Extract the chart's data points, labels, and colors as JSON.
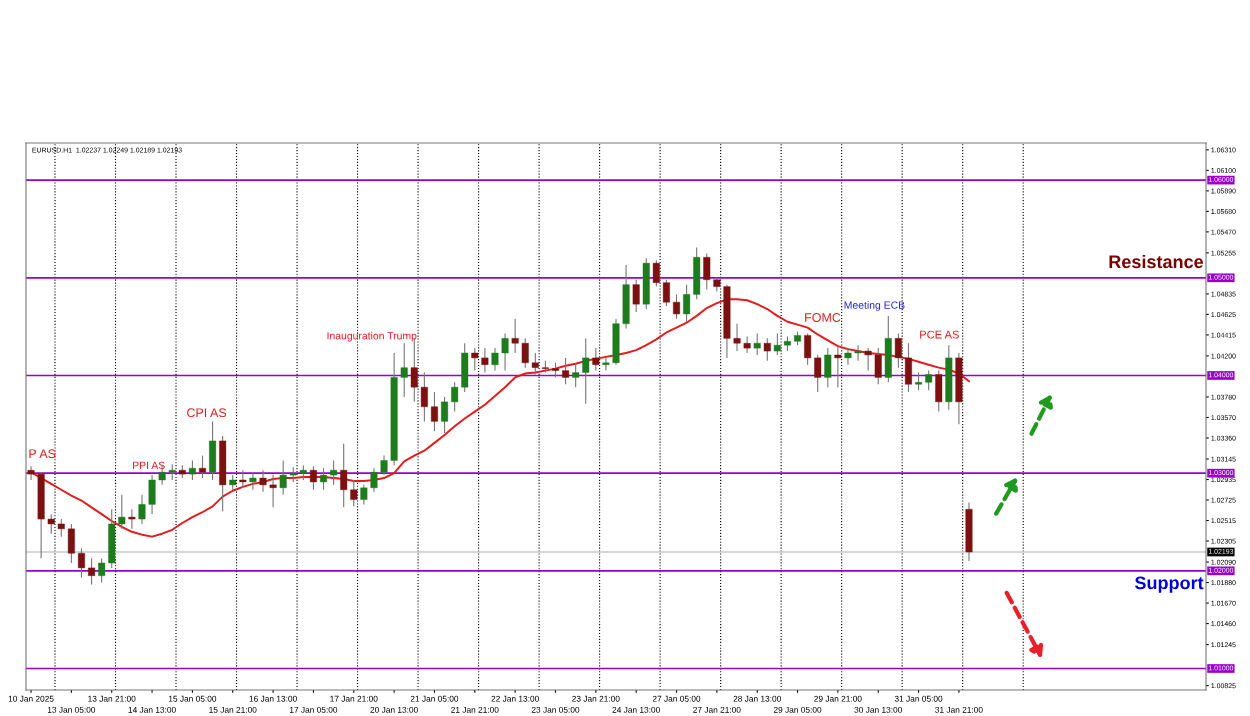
{
  "chart_data": {
    "type": "candlestick",
    "title": "EURUSD.H1  1.02237 1.02249 1.02189 1.02193",
    "categories": [
      "10 Jan 2025",
      null,
      null,
      null,
      "13 Jan 05:00",
      null,
      null,
      null,
      "13 Jan 21:00",
      null,
      null,
      null,
      "14 Jan 13:00",
      null,
      null,
      null,
      "15 Jan 05:00",
      null,
      null,
      null,
      "15 Jan 21:00",
      null,
      null,
      null,
      "16 Jan 13:00",
      null,
      null,
      null,
      "17 Jan 05:00",
      null,
      null,
      null,
      "17 Jan 21:00",
      null,
      null,
      null,
      "20 Jan 13:00",
      null,
      null,
      null,
      "21 Jan 05:00",
      null,
      null,
      null,
      "21 Jan 21:00",
      null,
      null,
      null,
      "22 Jan 13:00",
      null,
      null,
      null,
      "23 Jan 05:00",
      null,
      null,
      null,
      "23 Jan 21:00",
      null,
      null,
      null,
      "24 Jan 13:00",
      null,
      null,
      null,
      "27 Jan 05:00",
      null,
      null,
      null,
      "27 Jan 21:00",
      null,
      null,
      null,
      "28 Jan 13:00",
      null,
      null,
      null,
      "29 Jan 05:00",
      null,
      null,
      null,
      "29 Jan 21:00",
      null,
      null,
      null,
      "30 Jan 13:00",
      null,
      null,
      null,
      "31 Jan 05:00",
      null,
      null,
      null,
      "31 Jan 21:00",
      null,
      null,
      null,
      null,
      null,
      null,
      null,
      null,
      null,
      null,
      null,
      null,
      null,
      null,
      null,
      null,
      null,
      null,
      null,
      null,
      null,
      null,
      null,
      null
    ],
    "ohlc": [
      [
        1.0303,
        1.0307,
        1.0293,
        1.0299
      ],
      [
        1.0299,
        1.0301,
        1.0213,
        1.0253
      ],
      [
        1.0253,
        1.0258,
        1.0238,
        1.0248
      ],
      [
        1.0248,
        1.0253,
        1.0235,
        1.0243
      ],
      [
        1.0243,
        1.0248,
        1.0208,
        1.0218
      ],
      [
        1.0218,
        1.0223,
        1.0193,
        1.0203
      ],
      [
        1.0203,
        1.0213,
        1.0186,
        1.0195
      ],
      [
        1.0195,
        1.0213,
        1.0188,
        1.0208
      ],
      [
        1.0208,
        1.0263,
        1.0203,
        1.0248
      ],
      [
        1.0248,
        1.0278,
        1.0243,
        1.0255
      ],
      [
        1.0255,
        1.0263,
        1.0243,
        1.0253
      ],
      [
        1.0253,
        1.0278,
        1.0248,
        1.0268
      ],
      [
        1.0268,
        1.0298,
        1.0258,
        1.0293
      ],
      [
        1.0293,
        1.0308,
        1.0288,
        1.0301
      ],
      [
        1.0301,
        1.0309,
        1.0293,
        1.0303
      ],
      [
        1.0303,
        1.0308,
        1.0295,
        1.0299
      ],
      [
        1.0299,
        1.0313,
        1.0293,
        1.0305
      ],
      [
        1.0305,
        1.0318,
        1.0295,
        1.0301
      ],
      [
        1.0301,
        1.0353,
        1.0293,
        1.0333
      ],
      [
        1.0333,
        1.0338,
        1.0261,
        1.0288
      ],
      [
        1.0288,
        1.0298,
        1.0283,
        1.0293
      ],
      [
        1.0293,
        1.0303,
        1.0285,
        1.0291
      ],
      [
        1.0291,
        1.03,
        1.0283,
        1.0295
      ],
      [
        1.0295,
        1.0303,
        1.0281,
        1.0288
      ],
      [
        1.0288,
        1.0298,
        1.0265,
        1.0285
      ],
      [
        1.0285,
        1.0313,
        1.0278,
        1.0298
      ],
      [
        1.0298,
        1.0306,
        1.0291,
        1.03
      ],
      [
        1.03,
        1.0308,
        1.0293,
        1.0303
      ],
      [
        1.0303,
        1.0307,
        1.0283,
        1.0291
      ],
      [
        1.0291,
        1.0305,
        1.0283,
        1.0298
      ],
      [
        1.0298,
        1.0313,
        1.0288,
        1.0303
      ],
      [
        1.0303,
        1.033,
        1.0265,
        1.0283
      ],
      [
        1.0283,
        1.0293,
        1.0266,
        1.0273
      ],
      [
        1.0273,
        1.0288,
        1.0268,
        1.0285
      ],
      [
        1.0285,
        1.0305,
        1.0281,
        1.0301
      ],
      [
        1.0301,
        1.0318,
        1.0298,
        1.0313
      ],
      [
        1.0313,
        1.0423,
        1.0308,
        1.0398
      ],
      [
        1.0398,
        1.0433,
        1.0378,
        1.0408
      ],
      [
        1.0408,
        1.0438,
        1.0373,
        1.0388
      ],
      [
        1.0388,
        1.0403,
        1.0353,
        1.0368
      ],
      [
        1.0368,
        1.0383,
        1.0343,
        1.0353
      ],
      [
        1.0353,
        1.0378,
        1.0341,
        1.0373
      ],
      [
        1.0373,
        1.0393,
        1.0363,
        1.0388
      ],
      [
        1.0388,
        1.0433,
        1.0383,
        1.0423
      ],
      [
        1.0423,
        1.0428,
        1.0405,
        1.0418
      ],
      [
        1.0418,
        1.0428,
        1.0403,
        1.0411
      ],
      [
        1.0411,
        1.0428,
        1.0405,
        1.0423
      ],
      [
        1.0423,
        1.0443,
        1.0405,
        1.0438
      ],
      [
        1.0438,
        1.0458,
        1.0423,
        1.0433
      ],
      [
        1.0433,
        1.0438,
        1.0408,
        1.0413
      ],
      [
        1.0413,
        1.0423,
        1.0401,
        1.0408
      ],
      [
        1.0408,
        1.0415,
        1.0403,
        1.0407
      ],
      [
        1.0407,
        1.0413,
        1.0398,
        1.0405
      ],
      [
        1.0405,
        1.0418,
        1.0391,
        1.0398
      ],
      [
        1.0398,
        1.0413,
        1.0388,
        1.0403
      ],
      [
        1.0403,
        1.0438,
        1.0371,
        1.0418
      ],
      [
        1.0418,
        1.0428,
        1.0405,
        1.0411
      ],
      [
        1.0411,
        1.0418,
        1.0405,
        1.0413
      ],
      [
        1.0413,
        1.0458,
        1.0411,
        1.0453
      ],
      [
        1.0453,
        1.0513,
        1.0448,
        1.0493
      ],
      [
        1.0493,
        1.0498,
        1.0465,
        1.0473
      ],
      [
        1.0473,
        1.052,
        1.0468,
        1.0515
      ],
      [
        1.0515,
        1.0518,
        1.0491,
        1.0495
      ],
      [
        1.0495,
        1.0498,
        1.0471,
        1.0475
      ],
      [
        1.0475,
        1.0483,
        1.0458,
        1.0463
      ],
      [
        1.0463,
        1.0493,
        1.0455,
        1.0483
      ],
      [
        1.0483,
        1.0531,
        1.0478,
        1.0521
      ],
      [
        1.0521,
        1.0525,
        1.0488,
        1.0498
      ],
      [
        1.0498,
        1.0501,
        1.0486,
        1.0491
      ],
      [
        1.0491,
        1.0493,
        1.0418,
        1.0438
      ],
      [
        1.0438,
        1.0453,
        1.0425,
        1.0433
      ],
      [
        1.0433,
        1.044,
        1.0423,
        1.0428
      ],
      [
        1.0428,
        1.0443,
        1.0421,
        1.0433
      ],
      [
        1.0433,
        1.0438,
        1.0415,
        1.0425
      ],
      [
        1.0425,
        1.0443,
        1.0421,
        1.0431
      ],
      [
        1.0431,
        1.044,
        1.0425,
        1.0435
      ],
      [
        1.0435,
        1.0445,
        1.0431,
        1.0441
      ],
      [
        1.0441,
        1.0443,
        1.0411,
        1.0418
      ],
      [
        1.0418,
        1.0421,
        1.0383,
        1.0398
      ],
      [
        1.0398,
        1.0428,
        1.0388,
        1.0421
      ],
      [
        1.0421,
        1.043,
        1.0388,
        1.0418
      ],
      [
        1.0418,
        1.0428,
        1.0411,
        1.0423
      ],
      [
        1.0423,
        1.0431,
        1.0415,
        1.0425
      ],
      [
        1.0425,
        1.0428,
        1.0405,
        1.0421
      ],
      [
        1.0421,
        1.0428,
        1.0391,
        1.0398
      ],
      [
        1.0398,
        1.0461,
        1.0393,
        1.0438
      ],
      [
        1.0438,
        1.0443,
        1.0408,
        1.0418
      ],
      [
        1.0418,
        1.0433,
        1.0383,
        1.0391
      ],
      [
        1.0391,
        1.0403,
        1.0385,
        1.0393
      ],
      [
        1.0393,
        1.0405,
        1.0385,
        1.0401
      ],
      [
        1.0401,
        1.0405,
        1.0363,
        1.0373
      ],
      [
        1.0373,
        1.0431,
        1.0365,
        1.0418
      ],
      [
        1.0418,
        1.0423,
        1.035,
        1.0373
      ],
      [
        1.0263,
        1.027,
        1.021,
        1.02193
      ],
      null,
      null,
      null,
      null,
      null,
      null,
      null,
      null,
      null,
      null,
      null,
      null,
      null,
      null,
      null,
      null,
      null,
      null,
      null,
      null,
      null,
      null,
      null
    ],
    "colors": [
      "#7b1111",
      "#7b1111",
      "#7b1111",
      "#7b1111",
      "#7b1111",
      "#7b1111",
      "#7b1111",
      "#1e7b1e",
      "#1e7b1e",
      "#1e7b1e",
      "#7b1111",
      "#1e7b1e",
      "#1e7b1e",
      "#1e7b1e",
      "#1e7b1e",
      "#7b1111",
      "#1e7b1e",
      "#7b1111",
      "#1e7b1e",
      "#7b1111",
      "#1e7b1e",
      "#7b1111",
      "#1e7b1e",
      "#7b1111",
      "#7b1111",
      "#1e7b1e",
      "#1e7b1e",
      "#1e7b1e",
      "#7b1111",
      "#1e7b1e",
      "#1e7b1e",
      "#7b1111",
      "#7b1111",
      "#1e7b1e",
      "#1e7b1e",
      "#1e7b1e",
      "#1e7b1e",
      "#1e7b1e",
      "#7b1111",
      "#7b1111",
      "#7b1111",
      "#1e7b1e",
      "#1e7b1e",
      "#1e7b1e",
      "#7b1111",
      "#7b1111",
      "#1e7b1e",
      "#1e7b1e",
      "#7b1111",
      "#7b1111",
      "#7b1111",
      "#7b1111",
      "#7b1111",
      "#7b1111",
      "#1e7b1e",
      "#1e7b1e",
      "#7b1111",
      "#1e7b1e",
      "#1e7b1e",
      "#1e7b1e",
      "#7b1111",
      "#1e7b1e",
      "#7b1111",
      "#7b1111",
      "#7b1111",
      "#1e7b1e",
      "#1e7b1e",
      "#7b1111",
      "#7b1111",
      "#7b1111",
      "#7b1111",
      "#7b1111",
      "#1e7b1e",
      "#7b1111",
      "#1e7b1e",
      "#1e7b1e",
      "#1e7b1e",
      "#7b1111",
      "#7b1111",
      "#1e7b1e",
      "#7b1111",
      "#1e7b1e",
      "#1e7b1e",
      "#7b1111",
      "#7b1111",
      "#1e7b1e",
      "#7b1111",
      "#7b1111",
      "#1e7b1e",
      "#1e7b1e",
      "#7b1111",
      "#1e7b1e",
      "#7b1111",
      "#7b1111",
      null,
      null,
      null,
      null,
      null,
      null,
      null,
      null,
      null,
      null,
      null,
      null,
      null,
      null,
      null,
      null,
      null,
      null,
      null,
      null,
      null,
      null,
      null
    ],
    "series": [
      {
        "type": "line",
        "color": "#e41a1c",
        "values": [
          1.0301,
          1.0295,
          1.0289,
          1.0283,
          1.0277,
          1.0272,
          1.0265,
          1.0258,
          1.0251,
          1.0245,
          1.024,
          1.0237,
          1.0235,
          1.0238,
          1.0242,
          1.0249,
          1.0255,
          1.026,
          1.0266,
          1.0276,
          1.0282,
          1.0286,
          1.0289,
          1.0291,
          1.0294,
          1.0295,
          1.0295,
          1.0296,
          1.0296,
          1.0296,
          1.0295,
          1.0294,
          1.0292,
          1.0292,
          1.0293,
          1.0295,
          1.03,
          1.0312,
          1.0318,
          1.0323,
          1.0331,
          1.0339,
          1.0348,
          1.0356,
          1.0363,
          1.037,
          1.0379,
          1.0388,
          1.0398,
          1.0402,
          1.0403,
          1.0405,
          1.0407,
          1.041,
          1.0412,
          1.0415,
          1.0417,
          1.0419,
          1.0421,
          1.0423,
          1.0426,
          1.0431,
          1.0437,
          1.0444,
          1.0449,
          1.0454,
          1.0461,
          1.0469,
          1.0474,
          1.0478,
          1.0478,
          1.0477,
          1.0473,
          1.0468,
          1.0461,
          1.0455,
          1.0452,
          1.0449,
          1.0442,
          1.0436,
          1.043,
          1.0427,
          1.0425,
          1.0423,
          1.0422,
          1.0421,
          1.0419,
          1.0417,
          1.0414,
          1.0411,
          1.0408,
          1.0406,
          1.0402,
          1.0394,
          null,
          null,
          null,
          null,
          null,
          null,
          null,
          null,
          null,
          null,
          null,
          null,
          null,
          null,
          null,
          null,
          null,
          null,
          null,
          null,
          null,
          null,
          null
        ]
      }
    ],
    "ylim": [
      1.0078,
      1.0638
    ],
    "yticks": [
      {
        "value": 1.0631,
        "label": "1.06310"
      },
      {
        "value": 1.061,
        "label": "1.06100"
      },
      {
        "value": 1.0589,
        "label": "1.05890"
      },
      {
        "value": 1.0568,
        "label": "1.05680"
      },
      {
        "value": 1.0547,
        "label": "1.05470"
      },
      {
        "value": 1.05255,
        "label": "1.05255"
      },
      {
        "value": 1.04835,
        "label": "1.04835"
      },
      {
        "value": 1.04625,
        "label": "1.04625"
      },
      {
        "value": 1.04415,
        "label": "1.04415"
      },
      {
        "value": 1.042,
        "label": "1.04200"
      },
      {
        "value": 1.0378,
        "label": "1.03780"
      },
      {
        "value": 1.0357,
        "label": "1.03570"
      },
      {
        "value": 1.0336,
        "label": "1.03360"
      },
      {
        "value": 1.03145,
        "label": "1.03145"
      },
      {
        "value": 1.02935,
        "label": "1.02935"
      },
      {
        "value": 1.02725,
        "label": "1.02725"
      },
      {
        "value": 1.02515,
        "label": "1.02515"
      },
      {
        "value": 1.02305,
        "label": "1.02305"
      },
      {
        "value": 1.0209,
        "label": "1.02090"
      },
      {
        "value": 1.0188,
        "label": "1.01880"
      },
      {
        "value": 1.0167,
        "label": "1.01670"
      },
      {
        "value": 1.0146,
        "label": "1.01460"
      },
      {
        "value": 1.01245,
        "label": "1.01245"
      },
      {
        "value": 1.00825,
        "label": "1.00825"
      }
    ],
    "ref_lines": [
      {
        "axis": "y",
        "value": 1.06,
        "label": "1.06000",
        "color": "#9900cc",
        "line_style": "solid"
      },
      {
        "axis": "y",
        "value": 1.05,
        "label": "1.05000",
        "color": "#9900cc",
        "line_style": "solid"
      },
      {
        "axis": "y",
        "value": 1.04,
        "label": "1.04000",
        "color": "#9900cc",
        "line_style": "solid"
      },
      {
        "axis": "y",
        "value": 1.03,
        "label": "1.03000",
        "color": "#9900cc",
        "line_style": "solid"
      },
      {
        "axis": "y",
        "value": 1.02,
        "label": "1.02000",
        "color": "#9900cc",
        "line_style": "solid"
      },
      {
        "axis": "y",
        "value": 1.01,
        "label": "1.01000",
        "color": "#9900cc",
        "line_style": "solid"
      },
      {
        "axis": "y",
        "value": 1.02193,
        "label": "1.02193",
        "color": "#c8c8c8",
        "line_style": "solid"
      }
    ],
    "annotations": [
      "P AS",
      "PPI AS",
      "CPI AS",
      "Inauguration Trump",
      "FOMC",
      "Meeting ECB",
      "PCE AS",
      "Resistance",
      "Support"
    ],
    "grid": false,
    "legend": false
  }
}
